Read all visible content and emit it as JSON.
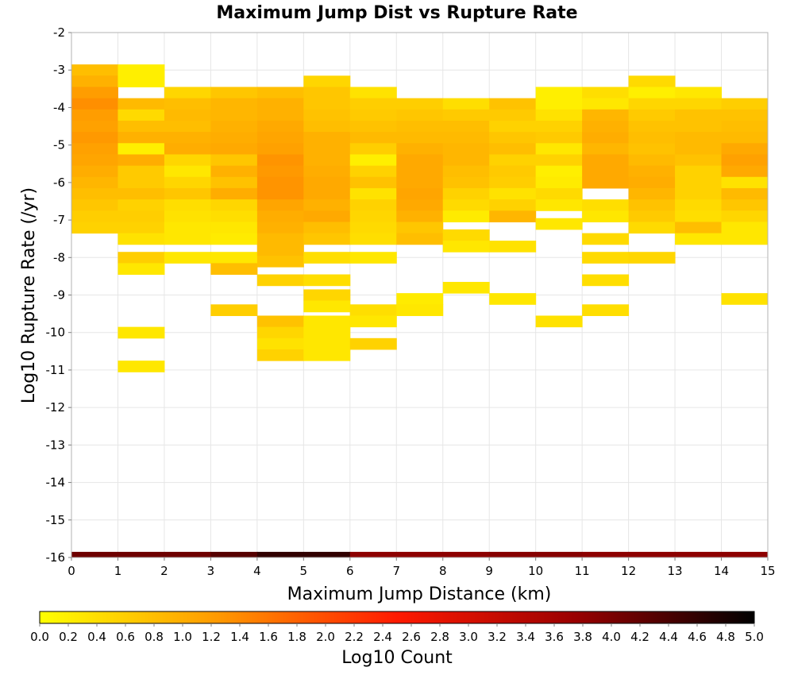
{
  "chart_data": {
    "type": "heatmap",
    "title": "Maximum Jump Dist vs Rupture Rate",
    "xlabel": "Maximum Jump Distance (km)",
    "ylabel": "Log10 Rupture Rate (/yr)",
    "xlim": [
      0,
      15
    ],
    "ylim": [
      -16,
      -2
    ],
    "x_ticks": [
      0,
      1,
      2,
      3,
      4,
      5,
      6,
      7,
      8,
      9,
      10,
      11,
      12,
      13,
      14,
      15
    ],
    "y_ticks": [
      -2,
      -3,
      -4,
      -5,
      -6,
      -7,
      -8,
      -9,
      -10,
      -11,
      -12,
      -13,
      -14,
      -15,
      -16
    ],
    "x_bin_width": 1,
    "y_bin_width": 0.3,
    "grid": true,
    "colorbar": {
      "label": "Log10 Count",
      "min": 0.0,
      "max": 5.0,
      "ticks": [
        "0.0",
        "0.2",
        "0.4",
        "0.6",
        "0.8",
        "1.0",
        "1.2",
        "1.4",
        "1.6",
        "1.8",
        "2.0",
        "2.2",
        "2.4",
        "2.6",
        "2.8",
        "3.0",
        "3.2",
        "3.4",
        "3.6",
        "3.8",
        "4.0",
        "4.2",
        "4.4",
        "4.6",
        "4.8",
        "5.0"
      ],
      "colors": [
        "#ffff00",
        "#ff9900",
        "#ff1a00",
        "#990000",
        "#000000"
      ]
    },
    "columns": [
      {
        "x": 0,
        "cells": [
          [
            -3.0,
            0.8
          ],
          [
            -3.3,
            0.95
          ],
          [
            -3.6,
            1.2
          ],
          [
            -3.9,
            1.35
          ],
          [
            -4.2,
            1.2
          ],
          [
            -4.5,
            1.15
          ],
          [
            -4.8,
            1.25
          ],
          [
            -5.1,
            1.15
          ],
          [
            -5.4,
            1.1
          ],
          [
            -5.7,
            1.0
          ],
          [
            -6.0,
            0.9
          ],
          [
            -6.3,
            0.8
          ],
          [
            -6.6,
            0.7
          ],
          [
            -6.9,
            0.6
          ],
          [
            -7.2,
            0.55
          ]
        ]
      },
      {
        "x": 1,
        "cells": [
          [
            -3.0,
            0.2
          ],
          [
            -3.3,
            0.2
          ],
          [
            -3.9,
            0.85
          ],
          [
            -4.2,
            0.45
          ],
          [
            -4.5,
            0.8
          ],
          [
            -4.8,
            0.95
          ],
          [
            -5.1,
            0.2
          ],
          [
            -5.4,
            1.0
          ],
          [
            -5.7,
            0.65
          ],
          [
            -6.0,
            0.65
          ],
          [
            -6.3,
            0.8
          ],
          [
            -6.6,
            0.55
          ],
          [
            -6.9,
            0.6
          ],
          [
            -7.2,
            0.55
          ],
          [
            -7.5,
            0.35
          ],
          [
            -8.0,
            0.6
          ],
          [
            -8.3,
            0.3
          ],
          [
            -10.0,
            0.3
          ],
          [
            -10.9,
            0.3
          ]
        ]
      },
      {
        "x": 2,
        "cells": [
          [
            -3.6,
            0.5
          ],
          [
            -3.9,
            0.8
          ],
          [
            -4.2,
            0.85
          ],
          [
            -4.5,
            0.8
          ],
          [
            -4.8,
            0.95
          ],
          [
            -5.1,
            1.0
          ],
          [
            -5.4,
            0.5
          ],
          [
            -5.7,
            0.3
          ],
          [
            -6.0,
            0.5
          ],
          [
            -6.3,
            0.7
          ],
          [
            -6.6,
            0.4
          ],
          [
            -6.9,
            0.35
          ],
          [
            -7.2,
            0.3
          ],
          [
            -7.5,
            0.3
          ],
          [
            -8.0,
            0.3
          ]
        ]
      },
      {
        "x": 3,
        "cells": [
          [
            -3.6,
            0.7
          ],
          [
            -3.9,
            0.9
          ],
          [
            -4.2,
            0.9
          ],
          [
            -4.5,
            0.95
          ],
          [
            -4.8,
            1.0
          ],
          [
            -5.1,
            1.05
          ],
          [
            -5.4,
            0.7
          ],
          [
            -5.7,
            0.95
          ],
          [
            -6.0,
            0.75
          ],
          [
            -6.3,
            1.0
          ],
          [
            -6.6,
            0.5
          ],
          [
            -6.9,
            0.4
          ],
          [
            -7.2,
            0.3
          ],
          [
            -7.5,
            0.25
          ],
          [
            -8.0,
            0.3
          ],
          [
            -8.3,
            0.8
          ],
          [
            -9.4,
            0.6
          ]
        ]
      },
      {
        "x": 4,
        "cells": [
          [
            -3.6,
            0.8
          ],
          [
            -3.9,
            0.95
          ],
          [
            -4.2,
            0.95
          ],
          [
            -4.5,
            1.05
          ],
          [
            -4.8,
            1.1
          ],
          [
            -5.1,
            1.15
          ],
          [
            -5.4,
            1.3
          ],
          [
            -5.7,
            1.25
          ],
          [
            -6.0,
            1.3
          ],
          [
            -6.3,
            1.3
          ],
          [
            -6.6,
            1.1
          ],
          [
            -6.9,
            1.0
          ],
          [
            -7.2,
            0.95
          ],
          [
            -7.5,
            0.85
          ],
          [
            -7.8,
            0.85
          ],
          [
            -8.1,
            0.75
          ],
          [
            -8.6,
            0.55
          ],
          [
            -9.7,
            0.75
          ],
          [
            -10.0,
            0.5
          ],
          [
            -10.3,
            0.35
          ],
          [
            -10.6,
            0.55
          ]
        ]
      },
      {
        "x": 5,
        "cells": [
          [
            -3.3,
            0.5
          ],
          [
            -3.6,
            0.7
          ],
          [
            -3.9,
            0.7
          ],
          [
            -4.2,
            0.75
          ],
          [
            -4.5,
            0.8
          ],
          [
            -4.8,
            0.95
          ],
          [
            -5.1,
            0.95
          ],
          [
            -5.4,
            0.95
          ],
          [
            -5.7,
            1.0
          ],
          [
            -6.0,
            1.05
          ],
          [
            -6.3,
            1.05
          ],
          [
            -6.6,
            0.95
          ],
          [
            -6.9,
            1.05
          ],
          [
            -7.2,
            0.8
          ],
          [
            -7.5,
            0.7
          ],
          [
            -8.0,
            0.4
          ],
          [
            -8.6,
            0.4
          ],
          [
            -9.0,
            0.5
          ],
          [
            -9.3,
            0.3
          ],
          [
            -9.7,
            0.3
          ],
          [
            -10.0,
            0.3
          ],
          [
            -10.3,
            0.3
          ],
          [
            -10.6,
            0.3
          ]
        ]
      },
      {
        "x": 6,
        "cells": [
          [
            -3.6,
            0.35
          ],
          [
            -3.9,
            0.6
          ],
          [
            -4.2,
            0.65
          ],
          [
            -4.5,
            0.75
          ],
          [
            -4.8,
            0.85
          ],
          [
            -5.1,
            0.6
          ],
          [
            -5.4,
            0.2
          ],
          [
            -5.7,
            0.55
          ],
          [
            -6.0,
            0.75
          ],
          [
            -6.3,
            0.35
          ],
          [
            -6.6,
            0.55
          ],
          [
            -6.9,
            0.5
          ],
          [
            -7.2,
            0.45
          ],
          [
            -7.5,
            0.4
          ],
          [
            -8.0,
            0.3
          ],
          [
            -9.4,
            0.4
          ],
          [
            -9.7,
            0.3
          ],
          [
            -10.3,
            0.55
          ]
        ]
      },
      {
        "x": 7,
        "cells": [
          [
            -3.9,
            0.6
          ],
          [
            -4.2,
            0.7
          ],
          [
            -4.5,
            0.8
          ],
          [
            -4.8,
            0.85
          ],
          [
            -5.1,
            0.95
          ],
          [
            -5.4,
            1.05
          ],
          [
            -5.7,
            1.05
          ],
          [
            -6.0,
            1.05
          ],
          [
            -6.3,
            1.1
          ],
          [
            -6.6,
            1.05
          ],
          [
            -6.9,
            0.95
          ],
          [
            -7.2,
            0.7
          ],
          [
            -7.5,
            0.8
          ],
          [
            -9.1,
            0.25
          ],
          [
            -9.4,
            0.3
          ]
        ]
      },
      {
        "x": 8,
        "cells": [
          [
            -3.9,
            0.4
          ],
          [
            -4.2,
            0.65
          ],
          [
            -4.5,
            0.8
          ],
          [
            -4.8,
            0.85
          ],
          [
            -5.1,
            0.9
          ],
          [
            -5.4,
            0.9
          ],
          [
            -5.7,
            0.8
          ],
          [
            -6.0,
            0.75
          ],
          [
            -6.3,
            0.55
          ],
          [
            -6.6,
            0.45
          ],
          [
            -6.9,
            0.25
          ],
          [
            -7.4,
            0.45
          ],
          [
            -7.7,
            0.3
          ],
          [
            -8.8,
            0.3
          ]
        ]
      },
      {
        "x": 9,
        "cells": [
          [
            -3.9,
            0.75
          ],
          [
            -4.2,
            0.65
          ],
          [
            -4.5,
            0.55
          ],
          [
            -4.8,
            0.7
          ],
          [
            -5.1,
            0.8
          ],
          [
            -5.4,
            0.55
          ],
          [
            -5.7,
            0.65
          ],
          [
            -6.0,
            0.6
          ],
          [
            -6.3,
            0.35
          ],
          [
            -6.6,
            0.55
          ],
          [
            -6.9,
            0.9
          ],
          [
            -7.7,
            0.35
          ],
          [
            -9.1,
            0.3
          ]
        ]
      },
      {
        "x": 10,
        "cells": [
          [
            -3.6,
            0.2
          ],
          [
            -3.9,
            0.2
          ],
          [
            -4.2,
            0.35
          ],
          [
            -4.5,
            0.55
          ],
          [
            -4.8,
            0.65
          ],
          [
            -5.1,
            0.3
          ],
          [
            -5.4,
            0.55
          ],
          [
            -5.7,
            0.2
          ],
          [
            -6.0,
            0.25
          ],
          [
            -6.3,
            0.45
          ],
          [
            -6.6,
            0.3
          ],
          [
            -7.1,
            0.3
          ],
          [
            -9.7,
            0.35
          ]
        ]
      },
      {
        "x": 11,
        "cells": [
          [
            -3.6,
            0.4
          ],
          [
            -3.9,
            0.3
          ],
          [
            -4.2,
            0.9
          ],
          [
            -4.5,
            0.95
          ],
          [
            -4.8,
            1.0
          ],
          [
            -5.1,
            0.9
          ],
          [
            -5.4,
            1.05
          ],
          [
            -5.7,
            1.05
          ],
          [
            -6.0,
            1.05
          ],
          [
            -6.6,
            0.4
          ],
          [
            -6.9,
            0.3
          ],
          [
            -7.5,
            0.45
          ],
          [
            -8.0,
            0.45
          ],
          [
            -8.6,
            0.4
          ],
          [
            -9.4,
            0.4
          ]
        ]
      },
      {
        "x": 12,
        "cells": [
          [
            -3.3,
            0.45
          ],
          [
            -3.6,
            0.2
          ],
          [
            -3.9,
            0.5
          ],
          [
            -4.2,
            0.65
          ],
          [
            -4.5,
            0.75
          ],
          [
            -4.8,
            0.8
          ],
          [
            -5.1,
            0.75
          ],
          [
            -5.4,
            0.85
          ],
          [
            -5.7,
            0.95
          ],
          [
            -6.0,
            1.0
          ],
          [
            -6.3,
            0.9
          ],
          [
            -6.6,
            0.75
          ],
          [
            -6.9,
            0.65
          ],
          [
            -7.2,
            0.45
          ],
          [
            -8.0,
            0.5
          ]
        ]
      },
      {
        "x": 13,
        "cells": [
          [
            -3.6,
            0.3
          ],
          [
            -3.9,
            0.5
          ],
          [
            -4.2,
            0.75
          ],
          [
            -4.5,
            0.75
          ],
          [
            -4.8,
            0.85
          ],
          [
            -5.1,
            0.85
          ],
          [
            -5.4,
            0.75
          ],
          [
            -5.7,
            0.55
          ],
          [
            -6.0,
            0.55
          ],
          [
            -6.3,
            0.55
          ],
          [
            -6.6,
            0.45
          ],
          [
            -6.9,
            0.4
          ],
          [
            -7.2,
            0.8
          ],
          [
            -7.5,
            0.3
          ]
        ]
      },
      {
        "x": 14,
        "cells": [
          [
            -3.9,
            0.6
          ],
          [
            -4.2,
            0.75
          ],
          [
            -4.5,
            0.8
          ],
          [
            -4.8,
            0.85
          ],
          [
            -5.1,
            1.05
          ],
          [
            -5.4,
            1.15
          ],
          [
            -5.7,
            1.05
          ],
          [
            -6.0,
            0.35
          ],
          [
            -6.3,
            0.85
          ],
          [
            -6.6,
            0.7
          ],
          [
            -6.9,
            0.5
          ],
          [
            -7.2,
            0.3
          ],
          [
            -7.5,
            0.3
          ],
          [
            -9.1,
            0.35
          ]
        ]
      }
    ],
    "bottom_row": {
      "y": -16,
      "values": [
        4.1,
        4.1,
        4.1,
        4.3,
        4.6,
        4.6,
        3.85,
        3.85,
        3.85,
        3.9,
        3.9,
        3.85,
        3.85,
        3.85,
        3.85
      ]
    }
  }
}
